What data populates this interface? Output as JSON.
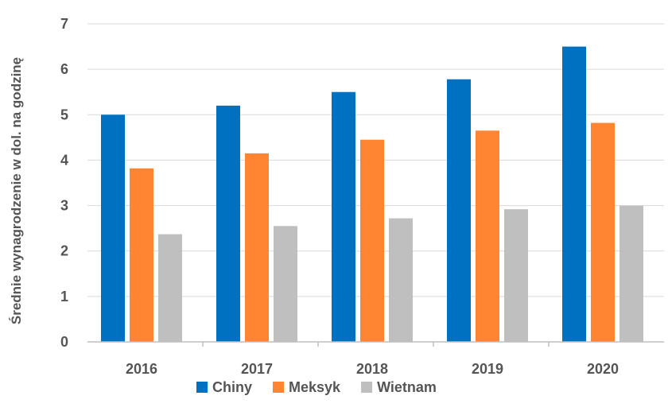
{
  "chart_data": {
    "type": "bar",
    "title": "",
    "xlabel": "",
    "ylabel": "Średnie wynagrodzenie w dol. na godzinę",
    "categories": [
      "2016",
      "2017",
      "2018",
      "2019",
      "2020"
    ],
    "series": [
      {
        "name": "Chiny",
        "color": "#0070c0",
        "values": [
          5.0,
          5.2,
          5.5,
          5.78,
          6.5
        ]
      },
      {
        "name": "Meksyk",
        "color": "#ff8533",
        "values": [
          3.82,
          4.15,
          4.45,
          4.65,
          4.82
        ]
      },
      {
        "name": "Wietnam",
        "color": "#bfbfbf",
        "values": [
          2.37,
          2.55,
          2.72,
          2.92,
          3.0
        ]
      }
    ],
    "ylim": [
      0,
      7
    ],
    "yticks": [
      0,
      1,
      2,
      3,
      4,
      5,
      6,
      7
    ],
    "grid": true,
    "legend_position": "bottom"
  }
}
